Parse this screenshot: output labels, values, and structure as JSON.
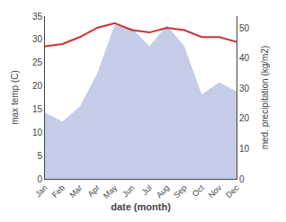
{
  "chart_data": {
    "type": "line",
    "categories": [
      "Jan",
      "Feb",
      "Mar",
      "Apr",
      "May",
      "Jun",
      "Jul",
      "Aug",
      "Sep",
      "Oct",
      "Nov",
      "Dec"
    ],
    "series": [
      {
        "type": "area",
        "axis": "y2",
        "color": "#c5cce8",
        "values": [
          22,
          19,
          24,
          35,
          51,
          50,
          44,
          51,
          44,
          28,
          32,
          29
        ]
      },
      {
        "type": "line",
        "color": "#cc3333",
        "values": [
          28.5,
          29.0,
          30.5,
          32.5,
          33.5,
          32.0,
          31.5,
          32.5,
          32.0,
          30.5,
          30.5,
          29.5
        ]
      }
    ],
    "xlabel": "date (month)",
    "ylabel": "max temp (C)",
    "y2label": "med. precipitation (kg/m2)",
    "ylim": [
      0,
      35
    ],
    "yticks": [
      0,
      5,
      10,
      15,
      20,
      25,
      30,
      35
    ],
    "y2lim": [
      0,
      54
    ],
    "y2ticks": [
      0,
      10,
      20,
      30,
      40,
      50
    ],
    "grid": false
  }
}
